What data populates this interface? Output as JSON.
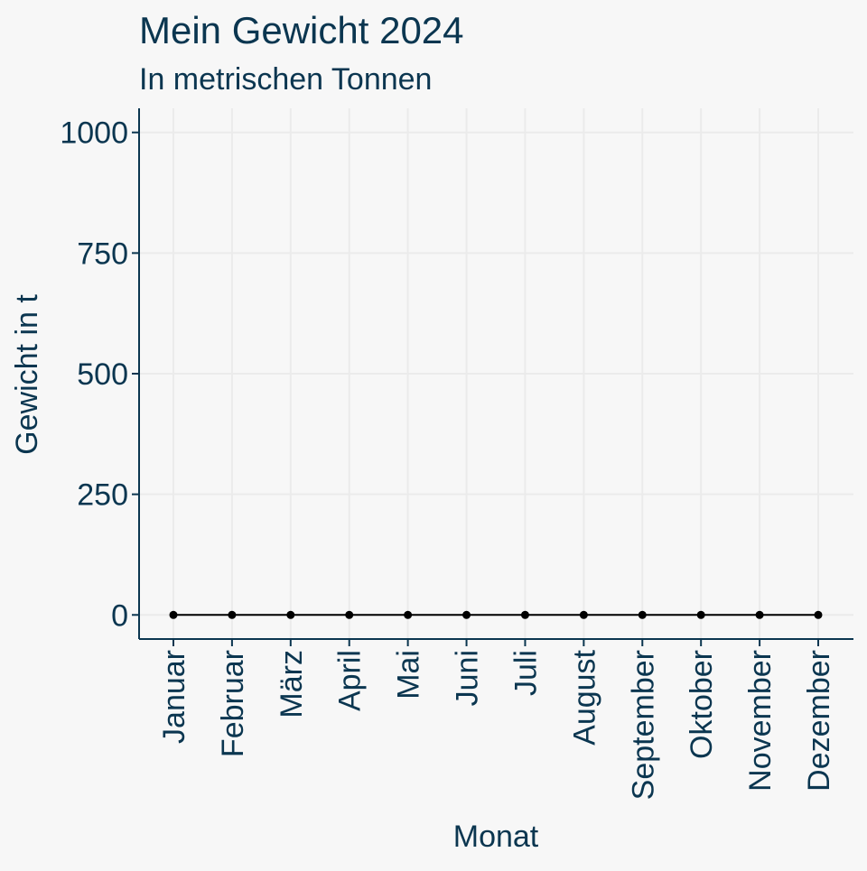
{
  "colors": {
    "background": "#f7f7f7",
    "text": "#0b3650",
    "axis": "#0b3650",
    "grid": "#ebebeb",
    "line": "#000000"
  },
  "chart_data": {
    "type": "line",
    "title": "Mein Gewicht 2024",
    "subtitle": "In metrischen Tonnen",
    "xlabel": "Monat",
    "ylabel": "Gewicht in t",
    "categories": [
      "Januar",
      "Februar",
      "März",
      "April",
      "Mai",
      "Juni",
      "Juli",
      "August",
      "September",
      "Oktober",
      "November",
      "Dezember"
    ],
    "series": [
      {
        "values": [
          0,
          0,
          0,
          0,
          0,
          0,
          0,
          0,
          0,
          0,
          0,
          0
        ]
      }
    ],
    "ylim": [
      -50,
      1050
    ],
    "yticks": [
      0,
      250,
      500,
      750,
      1000
    ],
    "ytick_labels": [
      "0",
      "250",
      "500",
      "750",
      "1000"
    ],
    "grid": true,
    "markers": true
  }
}
